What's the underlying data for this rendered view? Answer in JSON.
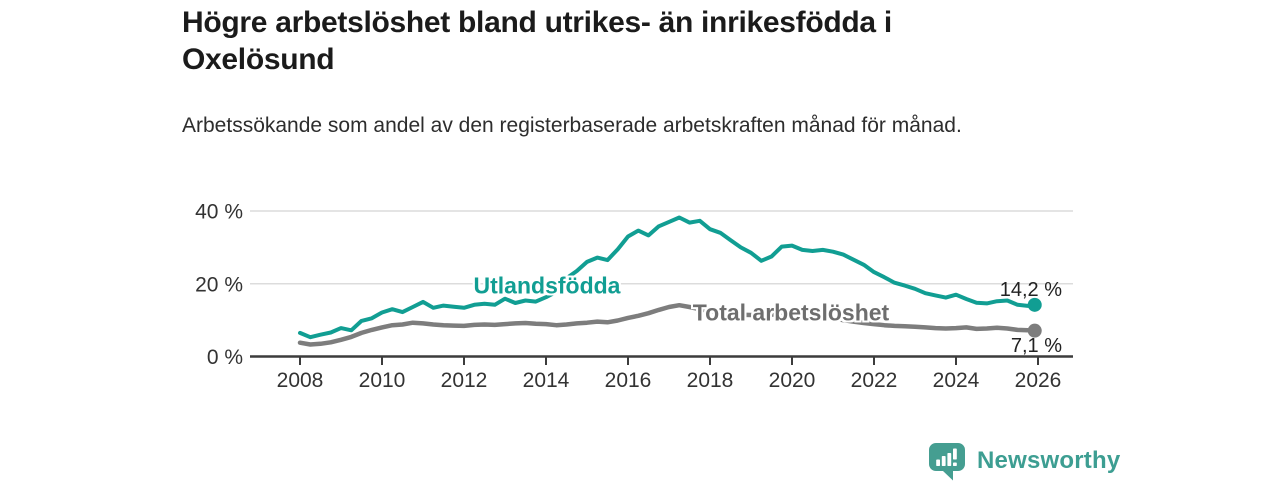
{
  "header": {
    "title": "Högre arbetslöshet bland utrikes- än inrikesfödda i Oxelösund",
    "subtitle": "Arbetssökande som andel av den registerbaserade arbetskraften månad för månad."
  },
  "colors": {
    "accent": "#119e93",
    "gray_line": "#7d7d7d",
    "gray_label": "#6e6e6e",
    "title_text": "#1b1b1b",
    "body_text": "#2d2d2d",
    "axis_text": "#333333",
    "grid": "#dcdcdc",
    "axis": "#3c3c3c",
    "value_label": "#222222",
    "logo": "#459e91"
  },
  "chart_data": {
    "type": "line",
    "title": "Högre arbetslöshet bland utrikes- än inrikesfödda i Oxelösund",
    "subtitle": "Arbetssökande som andel av den registerbaserade arbetskraften månad för månad.",
    "xlabel": "",
    "ylabel": "",
    "ylim": [
      0,
      44
    ],
    "xlim": [
      2006.8,
      2026.85
    ],
    "grid": "horizontal",
    "legend": "inline-labels",
    "yticks": [
      {
        "value": 0,
        "label": "0 %"
      },
      {
        "value": 20,
        "label": "20 %"
      },
      {
        "value": 40,
        "label": "40 %"
      }
    ],
    "xticks": [
      {
        "value": 2008,
        "label": "2008"
      },
      {
        "value": 2010,
        "label": "2010"
      },
      {
        "value": 2012,
        "label": "2012"
      },
      {
        "value": 2014,
        "label": "2014"
      },
      {
        "value": 2016,
        "label": "2016"
      },
      {
        "value": 2018,
        "label": "2018"
      },
      {
        "value": 2020,
        "label": "2020"
      },
      {
        "value": 2022,
        "label": "2022"
      },
      {
        "value": 2024,
        "label": "2024"
      },
      {
        "value": 2026,
        "label": "2026"
      }
    ],
    "series": [
      {
        "name": "Utlandsfödda",
        "color_key": "accent",
        "end_label": "14,2 %",
        "end_value": 14.2,
        "line_width": 4,
        "points": [
          [
            2008.0,
            6.5
          ],
          [
            2008.25,
            5.3
          ],
          [
            2008.5,
            6.0
          ],
          [
            2008.75,
            6.6
          ],
          [
            2009.0,
            7.8
          ],
          [
            2009.25,
            7.2
          ],
          [
            2009.5,
            9.8
          ],
          [
            2009.75,
            10.5
          ],
          [
            2010.0,
            12.1
          ],
          [
            2010.25,
            13.0
          ],
          [
            2010.5,
            12.2
          ],
          [
            2010.75,
            13.6
          ],
          [
            2011.0,
            15.0
          ],
          [
            2011.25,
            13.4
          ],
          [
            2011.5,
            14.0
          ],
          [
            2011.75,
            13.7
          ],
          [
            2012.0,
            13.4
          ],
          [
            2012.25,
            14.2
          ],
          [
            2012.5,
            14.5
          ],
          [
            2012.75,
            14.2
          ],
          [
            2013.0,
            15.9
          ],
          [
            2013.25,
            14.7
          ],
          [
            2013.5,
            15.4
          ],
          [
            2013.75,
            15.1
          ],
          [
            2014.0,
            16.3
          ],
          [
            2014.25,
            17.8
          ],
          [
            2014.5,
            21.5
          ],
          [
            2014.75,
            23.5
          ],
          [
            2015.0,
            26.0
          ],
          [
            2015.25,
            27.2
          ],
          [
            2015.5,
            26.5
          ],
          [
            2015.75,
            29.5
          ],
          [
            2016.0,
            33.0
          ],
          [
            2016.25,
            34.6
          ],
          [
            2016.5,
            33.3
          ],
          [
            2016.75,
            35.8
          ],
          [
            2017.0,
            37.0
          ],
          [
            2017.25,
            38.2
          ],
          [
            2017.5,
            36.8
          ],
          [
            2017.75,
            37.3
          ],
          [
            2018.0,
            35.0
          ],
          [
            2018.25,
            34.0
          ],
          [
            2018.5,
            32.0
          ],
          [
            2018.75,
            30.0
          ],
          [
            2019.0,
            28.5
          ],
          [
            2019.25,
            26.3
          ],
          [
            2019.5,
            27.5
          ],
          [
            2019.75,
            30.2
          ],
          [
            2020.0,
            30.5
          ],
          [
            2020.25,
            29.3
          ],
          [
            2020.5,
            29.0
          ],
          [
            2020.75,
            29.3
          ],
          [
            2021.0,
            28.8
          ],
          [
            2021.25,
            28.0
          ],
          [
            2021.5,
            26.6
          ],
          [
            2021.75,
            25.2
          ],
          [
            2022.0,
            23.2
          ],
          [
            2022.25,
            21.8
          ],
          [
            2022.5,
            20.3
          ],
          [
            2022.75,
            19.5
          ],
          [
            2023.0,
            18.6
          ],
          [
            2023.25,
            17.4
          ],
          [
            2023.5,
            16.8
          ],
          [
            2023.75,
            16.2
          ],
          [
            2024.0,
            17.0
          ],
          [
            2024.25,
            15.8
          ],
          [
            2024.5,
            14.8
          ],
          [
            2024.75,
            14.6
          ],
          [
            2025.0,
            15.2
          ],
          [
            2025.25,
            15.4
          ],
          [
            2025.5,
            14.2
          ],
          [
            2025.75,
            13.9
          ],
          [
            2025.92,
            14.2
          ]
        ]
      },
      {
        "name": "Total arbetslöshet",
        "color_key": "gray_line",
        "end_label": "7,1 %",
        "end_value": 7.1,
        "line_width": 4.5,
        "points": [
          [
            2008.0,
            3.8
          ],
          [
            2008.25,
            3.3
          ],
          [
            2008.5,
            3.5
          ],
          [
            2008.75,
            3.9
          ],
          [
            2009.0,
            4.6
          ],
          [
            2009.25,
            5.4
          ],
          [
            2009.5,
            6.5
          ],
          [
            2009.75,
            7.3
          ],
          [
            2010.0,
            8.0
          ],
          [
            2010.25,
            8.6
          ],
          [
            2010.5,
            8.8
          ],
          [
            2010.75,
            9.3
          ],
          [
            2011.0,
            9.1
          ],
          [
            2011.25,
            8.8
          ],
          [
            2011.5,
            8.6
          ],
          [
            2011.75,
            8.5
          ],
          [
            2012.0,
            8.4
          ],
          [
            2012.25,
            8.7
          ],
          [
            2012.5,
            8.8
          ],
          [
            2012.75,
            8.7
          ],
          [
            2013.0,
            8.9
          ],
          [
            2013.25,
            9.1
          ],
          [
            2013.5,
            9.2
          ],
          [
            2013.75,
            9.0
          ],
          [
            2014.0,
            8.9
          ],
          [
            2014.25,
            8.6
          ],
          [
            2014.5,
            8.8
          ],
          [
            2014.75,
            9.1
          ],
          [
            2015.0,
            9.3
          ],
          [
            2015.25,
            9.6
          ],
          [
            2015.5,
            9.4
          ],
          [
            2015.75,
            9.9
          ],
          [
            2016.0,
            10.6
          ],
          [
            2016.25,
            11.2
          ],
          [
            2016.5,
            11.9
          ],
          [
            2016.75,
            12.8
          ],
          [
            2017.0,
            13.6
          ],
          [
            2017.25,
            14.1
          ],
          [
            2017.5,
            13.6
          ],
          [
            2017.75,
            13.0
          ],
          [
            2018.0,
            12.5
          ],
          [
            2018.25,
            12.1
          ],
          [
            2018.5,
            11.8
          ],
          [
            2018.75,
            11.5
          ],
          [
            2019.0,
            11.4
          ],
          [
            2019.25,
            11.2
          ],
          [
            2019.5,
            11.5
          ],
          [
            2019.75,
            11.8
          ],
          [
            2020.0,
            12.0
          ],
          [
            2020.25,
            11.8
          ],
          [
            2020.5,
            11.4
          ],
          [
            2020.75,
            11.0
          ],
          [
            2021.0,
            10.5
          ],
          [
            2021.25,
            10.0
          ],
          [
            2021.5,
            9.6
          ],
          [
            2021.75,
            9.2
          ],
          [
            2022.0,
            8.9
          ],
          [
            2022.25,
            8.6
          ],
          [
            2022.5,
            8.4
          ],
          [
            2022.75,
            8.3
          ],
          [
            2023.0,
            8.2
          ],
          [
            2023.25,
            8.0
          ],
          [
            2023.5,
            7.8
          ],
          [
            2023.75,
            7.7
          ],
          [
            2024.0,
            7.8
          ],
          [
            2024.25,
            8.0
          ],
          [
            2024.5,
            7.6
          ],
          [
            2024.75,
            7.7
          ],
          [
            2025.0,
            7.9
          ],
          [
            2025.25,
            7.7
          ],
          [
            2025.5,
            7.3
          ],
          [
            2025.75,
            7.2
          ],
          [
            2025.92,
            7.1
          ]
        ]
      }
    ]
  },
  "footer": {
    "brand": "Newsworthy"
  }
}
